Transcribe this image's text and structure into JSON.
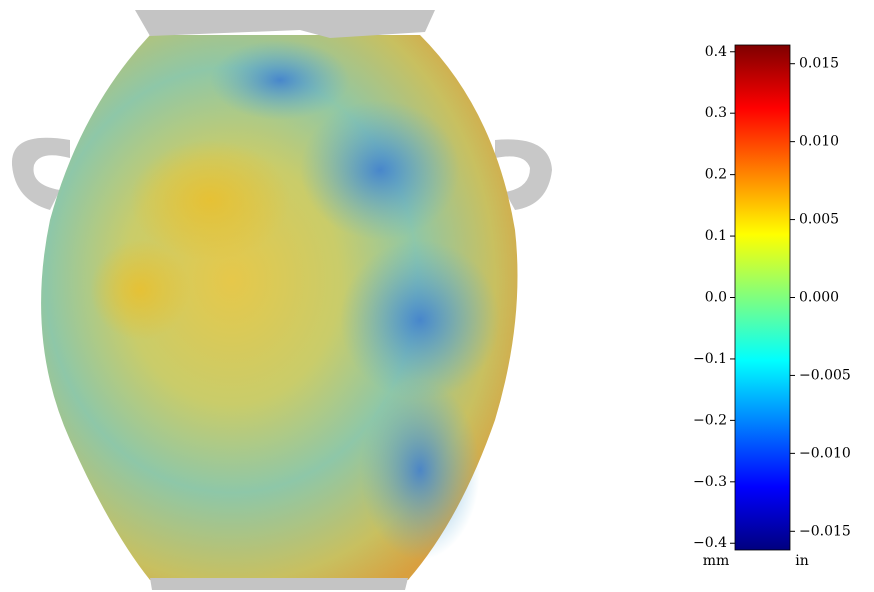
{
  "chart_data": {
    "type": "colorbar",
    "colormap": "jet",
    "ylabel": "mm",
    "y2label": "in",
    "ylim": [
      -0.411,
      0.411
    ],
    "yticks": [
      0.4,
      0.3,
      0.2,
      0.1,
      {
        "value": 0,
        "label": "0.0"
      },
      {
        "value": -0.1,
        "label": "−0.1"
      },
      {
        "value": -0.2,
        "label": "−0.2"
      },
      {
        "value": -0.3,
        "label": "−0.3"
      },
      {
        "value": -0.4,
        "label": "−0.4"
      }
    ],
    "y2lim": [
      -0.0162,
      0.0162
    ],
    "y2ticks": [
      0.015,
      {
        "value": 0.01,
        "label": "0.010"
      },
      0.005,
      {
        "value": 0,
        "label": "0.000"
      },
      {
        "value": -0.005,
        "label": "−0.005"
      },
      {
        "value": -0.01,
        "label": "−0.010"
      },
      {
        "value": -0.015,
        "label": "−0.015"
      }
    ]
  }
}
